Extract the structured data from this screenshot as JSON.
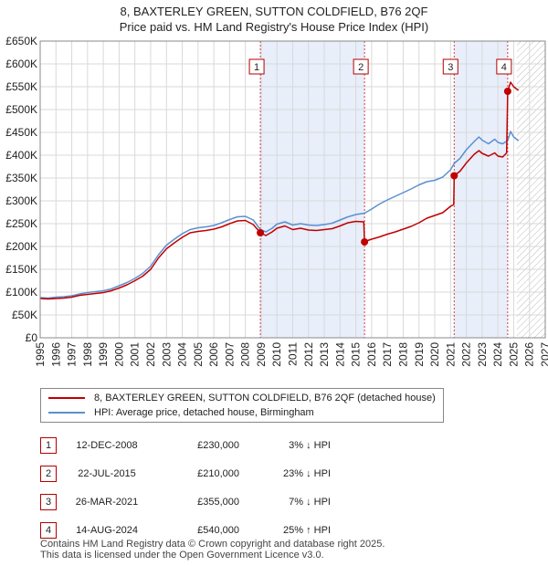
{
  "title_line1": "8, BAXTERLEY GREEN, SUTTON COLDFIELD, B76 2QF",
  "title_line2": "Price paid vs. HM Land Registry's House Price Index (HPI)",
  "chart_data": {
    "type": "line",
    "xlim": [
      1995,
      2027
    ],
    "ylim": [
      0,
      650000
    ],
    "x_ticks": [
      1995,
      1996,
      1997,
      1998,
      1999,
      2000,
      2001,
      2002,
      2003,
      2004,
      2005,
      2006,
      2007,
      2008,
      2009,
      2010,
      2011,
      2012,
      2013,
      2014,
      2015,
      2016,
      2017,
      2018,
      2019,
      2020,
      2021,
      2022,
      2023,
      2024,
      2025,
      2026,
      2027
    ],
    "y_ticks": [
      0,
      50000,
      100000,
      150000,
      200000,
      250000,
      300000,
      350000,
      400000,
      450000,
      500000,
      550000,
      600000,
      650000
    ],
    "y_tick_labels": [
      "£0",
      "£50K",
      "£100K",
      "£150K",
      "£200K",
      "£250K",
      "£300K",
      "£350K",
      "£400K",
      "£450K",
      "£500K",
      "£550K",
      "£600K",
      "£650K"
    ],
    "grid": true,
    "shaded_periods": [
      [
        2008.95,
        2015.55
      ],
      [
        2021.23,
        2024.62
      ]
    ],
    "future_hatch_from": 2025.2,
    "series": [
      {
        "name": "8, BAXTERLEY GREEN, SUTTON COLDFIELD, B76 2QF (detached house)",
        "color": "#c00000",
        "points": [
          [
            1995.0,
            86000
          ],
          [
            1995.5,
            85000
          ],
          [
            1996.0,
            86000
          ],
          [
            1996.5,
            87000
          ],
          [
            1997.0,
            89000
          ],
          [
            1997.5,
            93000
          ],
          [
            1998.0,
            95000
          ],
          [
            1998.5,
            97000
          ],
          [
            1999.0,
            99000
          ],
          [
            1999.5,
            103000
          ],
          [
            2000.0,
            109000
          ],
          [
            2000.5,
            116000
          ],
          [
            2001.0,
            125000
          ],
          [
            2001.5,
            135000
          ],
          [
            2002.0,
            150000
          ],
          [
            2002.5,
            175000
          ],
          [
            2003.0,
            195000
          ],
          [
            2003.5,
            208000
          ],
          [
            2004.0,
            220000
          ],
          [
            2004.5,
            230000
          ],
          [
            2005.0,
            233000
          ],
          [
            2005.5,
            235000
          ],
          [
            2006.0,
            238000
          ],
          [
            2006.5,
            243000
          ],
          [
            2007.0,
            250000
          ],
          [
            2007.5,
            256000
          ],
          [
            2008.0,
            257000
          ],
          [
            2008.5,
            248000
          ],
          [
            2008.95,
            230000
          ],
          [
            2009.3,
            224000
          ],
          [
            2009.7,
            232000
          ],
          [
            2010.0,
            240000
          ],
          [
            2010.5,
            245000
          ],
          [
            2011.0,
            237000
          ],
          [
            2011.5,
            240000
          ],
          [
            2012.0,
            236000
          ],
          [
            2012.5,
            235000
          ],
          [
            2013.0,
            237000
          ],
          [
            2013.5,
            239000
          ],
          [
            2014.0,
            245000
          ],
          [
            2014.5,
            252000
          ],
          [
            2015.0,
            255000
          ],
          [
            2015.5,
            254000
          ],
          [
            2015.55,
            210000
          ],
          [
            2015.9,
            215000
          ],
          [
            2016.5,
            221000
          ],
          [
            2017.0,
            227000
          ],
          [
            2017.5,
            232000
          ],
          [
            2018.0,
            238000
          ],
          [
            2018.5,
            244000
          ],
          [
            2019.0,
            252000
          ],
          [
            2019.5,
            262000
          ],
          [
            2020.0,
            268000
          ],
          [
            2020.5,
            274000
          ],
          [
            2021.0,
            288000
          ],
          [
            2021.2,
            292000
          ],
          [
            2021.23,
            355000
          ],
          [
            2021.6,
            365000
          ],
          [
            2022.0,
            383000
          ],
          [
            2022.5,
            402000
          ],
          [
            2022.8,
            410000
          ],
          [
            2023.0,
            404000
          ],
          [
            2023.4,
            398000
          ],
          [
            2023.8,
            405000
          ],
          [
            2024.0,
            398000
          ],
          [
            2024.3,
            396000
          ],
          [
            2024.55,
            405000
          ],
          [
            2024.62,
            540000
          ],
          [
            2024.8,
            560000
          ],
          [
            2025.0,
            550000
          ],
          [
            2025.3,
            542000
          ]
        ]
      },
      {
        "name": "HPI: Average price, detached house, Birmingham",
        "color": "#5b8fd0",
        "points": [
          [
            1995.0,
            88000
          ],
          [
            1995.5,
            87000
          ],
          [
            1996.0,
            89000
          ],
          [
            1996.5,
            90000
          ],
          [
            1997.0,
            92000
          ],
          [
            1997.5,
            96000
          ],
          [
            1998.0,
            99000
          ],
          [
            1998.5,
            101000
          ],
          [
            1999.0,
            103000
          ],
          [
            1999.5,
            107000
          ],
          [
            2000.0,
            114000
          ],
          [
            2000.5,
            121000
          ],
          [
            2001.0,
            130000
          ],
          [
            2001.5,
            141000
          ],
          [
            2002.0,
            157000
          ],
          [
            2002.5,
            182000
          ],
          [
            2003.0,
            203000
          ],
          [
            2003.5,
            216000
          ],
          [
            2004.0,
            228000
          ],
          [
            2004.5,
            237000
          ],
          [
            2005.0,
            241000
          ],
          [
            2005.5,
            243000
          ],
          [
            2006.0,
            246000
          ],
          [
            2006.5,
            252000
          ],
          [
            2007.0,
            259000
          ],
          [
            2007.5,
            265000
          ],
          [
            2008.0,
            266000
          ],
          [
            2008.5,
            258000
          ],
          [
            2008.95,
            237000
          ],
          [
            2009.3,
            232000
          ],
          [
            2009.7,
            240000
          ],
          [
            2010.0,
            249000
          ],
          [
            2010.5,
            254000
          ],
          [
            2011.0,
            247000
          ],
          [
            2011.5,
            250000
          ],
          [
            2012.0,
            247000
          ],
          [
            2012.5,
            246000
          ],
          [
            2013.0,
            248000
          ],
          [
            2013.5,
            251000
          ],
          [
            2014.0,
            258000
          ],
          [
            2014.5,
            265000
          ],
          [
            2015.0,
            270000
          ],
          [
            2015.55,
            273000
          ],
          [
            2016.0,
            282000
          ],
          [
            2016.5,
            293000
          ],
          [
            2017.0,
            302000
          ],
          [
            2017.5,
            310000
          ],
          [
            2018.0,
            318000
          ],
          [
            2018.5,
            326000
          ],
          [
            2019.0,
            335000
          ],
          [
            2019.5,
            342000
          ],
          [
            2020.0,
            345000
          ],
          [
            2020.5,
            352000
          ],
          [
            2021.0,
            368000
          ],
          [
            2021.23,
            382000
          ],
          [
            2021.6,
            393000
          ],
          [
            2022.0,
            412000
          ],
          [
            2022.5,
            430000
          ],
          [
            2022.8,
            440000
          ],
          [
            2023.0,
            433000
          ],
          [
            2023.4,
            425000
          ],
          [
            2023.8,
            435000
          ],
          [
            2024.0,
            428000
          ],
          [
            2024.3,
            425000
          ],
          [
            2024.62,
            432000
          ],
          [
            2024.8,
            452000
          ],
          [
            2025.0,
            440000
          ],
          [
            2025.3,
            432000
          ]
        ]
      }
    ],
    "sale_markers": [
      {
        "n": "1",
        "x": 2008.95,
        "y": 230000
      },
      {
        "n": "2",
        "x": 2015.55,
        "y": 210000
      },
      {
        "n": "3",
        "x": 2021.23,
        "y": 355000
      },
      {
        "n": "4",
        "x": 2024.62,
        "y": 540000
      }
    ]
  },
  "legend": {
    "property_label": "8, BAXTERLEY GREEN, SUTTON COLDFIELD, B76 2QF (detached house)",
    "hpi_label": "HPI: Average price, detached house, Birmingham",
    "property_color": "#c00000",
    "hpi_color": "#5b8fd0"
  },
  "sales": [
    {
      "n": "1",
      "date": "12-DEC-2008",
      "price": "£230,000",
      "pct": "3% ↓ HPI"
    },
    {
      "n": "2",
      "date": "22-JUL-2015",
      "price": "£210,000",
      "pct": "23% ↓ HPI"
    },
    {
      "n": "3",
      "date": "26-MAR-2021",
      "price": "£355,000",
      "pct": "7% ↓ HPI"
    },
    {
      "n": "4",
      "date": "14-AUG-2024",
      "price": "£540,000",
      "pct": "25% ↑ HPI"
    }
  ],
  "footer_line1": "Contains HM Land Registry data © Crown copyright and database right 2025.",
  "footer_line2": "This data is licensed under the Open Government Licence v3.0."
}
